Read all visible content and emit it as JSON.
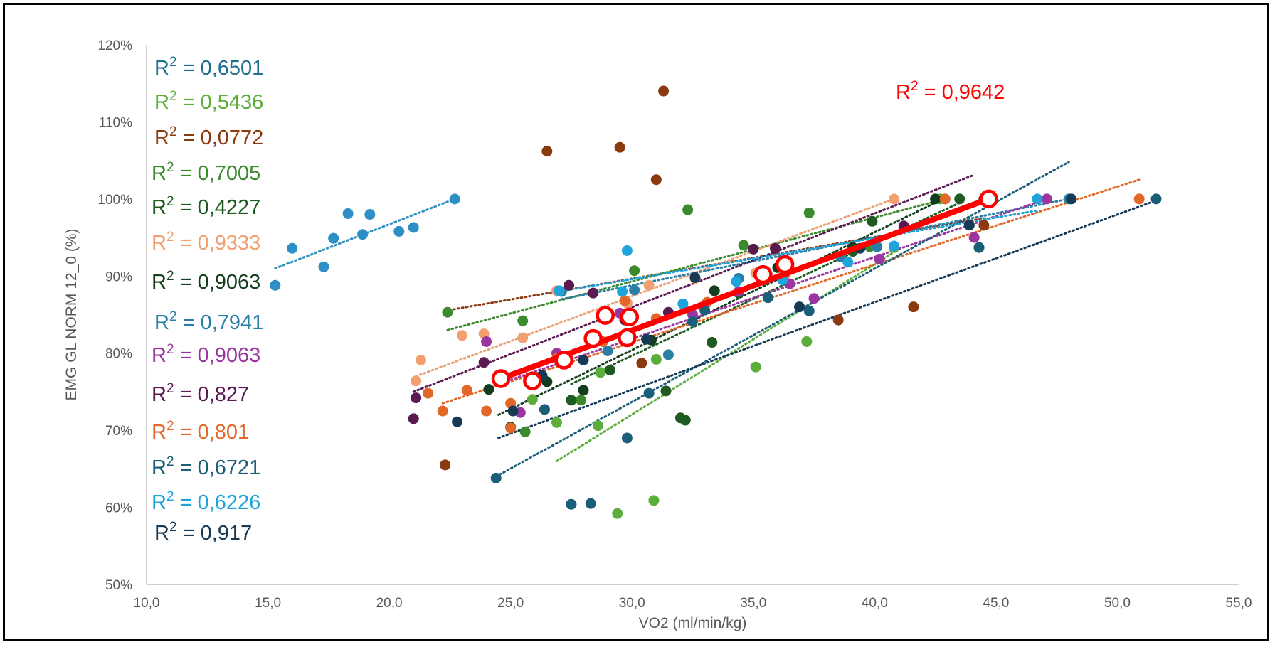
{
  "chart_data": {
    "type": "scatter",
    "title": "",
    "xlabel": "VO2 (ml/min/kg)",
    "ylabel": "EMG GL NORM 12_0 (%)",
    "xlim": [
      10,
      55
    ],
    "ylim": [
      50,
      120
    ],
    "x_ticks": [
      "10,0",
      "15,0",
      "20,0",
      "25,0",
      "30,0",
      "35,0",
      "40,0",
      "45,0",
      "50,0",
      "55,0"
    ],
    "y_ticks": [
      "50%",
      "60%",
      "70%",
      "80%",
      "90%",
      "100%",
      "110%",
      "120%"
    ],
    "grid": false,
    "legend": "none",
    "r2_labels": [
      {
        "text": "R² = 0,6501",
        "base": "R",
        "exp": "2",
        "rest": " = 0,6501",
        "color": "#1F6E8C"
      },
      {
        "text": "R² = 0,5436",
        "base": "R",
        "exp": "2",
        "rest": " = 0,5436",
        "color": "#5BAE3A"
      },
      {
        "text": "R² = 0,0772",
        "base": "R",
        "exp": "2",
        "rest": " = 0,0772",
        "color": "#8B3A10"
      },
      {
        "text": "R² = 0,7005",
        "base": "R",
        "exp": "2",
        "rest": " = 0,7005",
        "color": "#3C8A2E"
      },
      {
        "text": "R² = 0,4227",
        "base": "R",
        "exp": "2",
        "rest": " = 0,4227",
        "color": "#1E5A22"
      },
      {
        "text": "R² = 0,9333",
        "base": "R",
        "exp": "2",
        "rest": " = 0,9333",
        "color": "#F2A071"
      },
      {
        "text": "R² = 0,9063",
        "base": "R",
        "exp": "2",
        "rest": " = 0,9063",
        "color": "#123E1E"
      },
      {
        "text": "R² = 0,7941",
        "base": "R",
        "exp": "2",
        "rest": " = 0,7941",
        "color": "#2A7FA6"
      },
      {
        "text": "R² = 0,9063",
        "base": "R",
        "exp": "2",
        "rest": " = 0,9063",
        "color": "#9B36A0"
      },
      {
        "text": "R² = 0,827",
        "base": "R",
        "exp": "2",
        "rest": " = 0,827",
        "color": "#5A1A50"
      },
      {
        "text": "R² = 0,801",
        "base": "R",
        "exp": "2",
        "rest": " = 0,801",
        "color": "#E2682A"
      },
      {
        "text": "R² = 0,6721",
        "base": "R",
        "exp": "2",
        "rest": " = 0,6721",
        "color": "#1A5E78"
      },
      {
        "text": "R² = 0,6226",
        "base": "R",
        "exp": "2",
        "rest": " = 0,6226",
        "color": "#1FA3DB"
      },
      {
        "text": "R² = 0,917",
        "base": "R",
        "exp": "2",
        "rest": " = 0,917",
        "color": "#163A55"
      }
    ],
    "mean_r2_label": {
      "text": "R² = 0,9642",
      "base": "R",
      "exp": "2",
      "rest": " = 0,9642",
      "color": "#FF0000"
    },
    "series": [
      {
        "color": "#2E8FC4",
        "points": [
          [
            15.3,
            88.8
          ],
          [
            16.0,
            93.6
          ],
          [
            17.3,
            91.2
          ],
          [
            17.7,
            94.9
          ],
          [
            18.3,
            98.1
          ],
          [
            18.9,
            95.4
          ],
          [
            19.2,
            98.0
          ],
          [
            20.4,
            95.8
          ],
          [
            21.0,
            96.3
          ],
          [
            22.7,
            100.0
          ]
        ],
        "trend": [
          [
            15.3,
            91.0
          ],
          [
            22.7,
            100.0
          ]
        ]
      },
      {
        "color": "#5BAE3A",
        "points": [
          [
            25.9,
            74.0
          ],
          [
            26.9,
            71.0
          ],
          [
            28.6,
            70.6
          ],
          [
            28.7,
            77.5
          ],
          [
            29.4,
            59.2
          ],
          [
            30.9,
            60.9
          ],
          [
            31.0,
            79.2
          ],
          [
            35.1,
            78.2
          ],
          [
            37.2,
            81.5
          ],
          [
            40.8,
            93.7
          ],
          [
            42.7,
            100.0
          ]
        ],
        "trend": [
          [
            26.9,
            66.0
          ],
          [
            41.0,
            93.5
          ]
        ]
      },
      {
        "color": "#8B3A10",
        "points": [
          [
            22.3,
            65.5
          ],
          [
            26.5,
            106.2
          ],
          [
            29.5,
            106.7
          ],
          [
            30.4,
            78.7
          ],
          [
            31.0,
            102.5
          ],
          [
            31.3,
            114.0
          ],
          [
            38.5,
            84.3
          ],
          [
            41.6,
            86.0
          ],
          [
            44.5,
            96.6
          ]
        ],
        "trend": [
          [
            22.3,
            85.5
          ],
          [
            44.5,
            97.5
          ]
        ]
      },
      {
        "color": "#3C8A2E",
        "points": [
          [
            22.4,
            85.3
          ],
          [
            25.5,
            84.2
          ],
          [
            25.6,
            69.8
          ],
          [
            27.9,
            73.9
          ],
          [
            30.1,
            90.7
          ],
          [
            32.3,
            98.6
          ],
          [
            34.6,
            94.0
          ],
          [
            37.3,
            98.2
          ],
          [
            39.8,
            93.8
          ],
          [
            42.9,
            100.0
          ]
        ],
        "trend": [
          [
            22.4,
            83.0
          ],
          [
            42.9,
            100.0
          ]
        ]
      },
      {
        "color": "#1E5A22",
        "points": [
          [
            27.5,
            73.9
          ],
          [
            29.1,
            77.8
          ],
          [
            31.4,
            75.1
          ],
          [
            32.0,
            71.6
          ],
          [
            32.2,
            71.3
          ],
          [
            33.3,
            81.4
          ],
          [
            34.4,
            87.8
          ],
          [
            39.1,
            93.2
          ],
          [
            39.9,
            97.1
          ],
          [
            43.5,
            100.0
          ]
        ],
        "trend": [
          [
            27.5,
            76.0
          ],
          [
            43.5,
            99.5
          ]
        ]
      },
      {
        "color": "#F2A071",
        "points": [
          [
            21.1,
            76.4
          ],
          [
            21.3,
            79.1
          ],
          [
            23.0,
            82.3
          ],
          [
            23.9,
            82.5
          ],
          [
            25.5,
            82.0
          ],
          [
            26.9,
            88.1
          ],
          [
            29.8,
            86.5
          ],
          [
            30.7,
            88.8
          ],
          [
            32.6,
            89.7
          ],
          [
            35.1,
            90.4
          ],
          [
            40.8,
            100.0
          ]
        ],
        "trend": [
          [
            21.1,
            77.0
          ],
          [
            40.8,
            100.0
          ]
        ]
      },
      {
        "color": "#123E1E",
        "points": [
          [
            24.1,
            75.3
          ],
          [
            25.0,
            70.4
          ],
          [
            26.5,
            76.3
          ],
          [
            28.0,
            75.2
          ],
          [
            29.8,
            82.1
          ],
          [
            30.8,
            81.7
          ],
          [
            33.4,
            88.1
          ],
          [
            36.0,
            91.1
          ],
          [
            39.1,
            93.7
          ],
          [
            42.5,
            100.0
          ]
        ],
        "trend": [
          [
            24.5,
            72.0
          ],
          [
            42.5,
            99.5
          ]
        ]
      },
      {
        "color": "#2A7FA6",
        "points": [
          [
            27.1,
            88.0
          ],
          [
            29.0,
            80.3
          ],
          [
            30.1,
            88.2
          ],
          [
            31.5,
            79.8
          ],
          [
            34.4,
            89.7
          ],
          [
            35.5,
            90.3
          ],
          [
            38.6,
            92.5
          ],
          [
            40.1,
            93.8
          ],
          [
            44.3,
            93.7
          ],
          [
            48.0,
            100.0
          ]
        ],
        "trend": [
          [
            27.1,
            87.0
          ],
          [
            48.0,
            100.0
          ]
        ]
      },
      {
        "color": "#9B36A0",
        "points": [
          [
            24.0,
            81.5
          ],
          [
            25.4,
            72.3
          ],
          [
            26.9,
            80.0
          ],
          [
            29.5,
            85.2
          ],
          [
            32.5,
            85.0
          ],
          [
            34.4,
            88.0
          ],
          [
            36.5,
            89.0
          ],
          [
            37.5,
            87.1
          ],
          [
            40.2,
            92.2
          ],
          [
            44.1,
            95.0
          ],
          [
            47.1,
            100.0
          ]
        ],
        "trend": [
          [
            24.0,
            75.5
          ],
          [
            47.1,
            100.0
          ]
        ]
      },
      {
        "color": "#5A1A50",
        "points": [
          [
            21.0,
            71.5
          ],
          [
            21.1,
            74.2
          ],
          [
            23.9,
            78.8
          ],
          [
            27.4,
            88.8
          ],
          [
            28.4,
            87.8
          ],
          [
            29.7,
            84.3
          ],
          [
            31.5,
            85.3
          ],
          [
            35.0,
            93.5
          ],
          [
            35.9,
            93.6
          ],
          [
            41.2,
            96.5
          ],
          [
            44.5,
            100.0
          ]
        ],
        "trend": [
          [
            21.0,
            75.0
          ],
          [
            44.0,
            103.0
          ]
        ]
      },
      {
        "color": "#E2682A",
        "points": [
          [
            21.6,
            74.8
          ],
          [
            22.2,
            72.5
          ],
          [
            23.2,
            75.2
          ],
          [
            24.0,
            72.5
          ],
          [
            25.0,
            73.5
          ],
          [
            25.0,
            70.3
          ],
          [
            26.9,
            79.3
          ],
          [
            28.8,
            81.5
          ],
          [
            29.7,
            86.8
          ],
          [
            31.0,
            84.5
          ],
          [
            33.1,
            86.6
          ],
          [
            36.3,
            90.2
          ],
          [
            42.9,
            100.0
          ],
          [
            50.9,
            100.0
          ]
        ],
        "trend": [
          [
            22.2,
            73.5
          ],
          [
            50.9,
            102.5
          ]
        ]
      },
      {
        "color": "#1A5E78",
        "points": [
          [
            24.4,
            63.8
          ],
          [
            26.4,
            72.7
          ],
          [
            27.5,
            60.4
          ],
          [
            28.3,
            60.5
          ],
          [
            29.8,
            69.0
          ],
          [
            30.7,
            74.8
          ],
          [
            32.5,
            84.1
          ],
          [
            33.0,
            85.6
          ],
          [
            35.6,
            87.2
          ],
          [
            37.3,
            85.5
          ],
          [
            44.3,
            93.7
          ],
          [
            51.6,
            100.0
          ]
        ],
        "trend": [
          [
            24.4,
            64.0
          ],
          [
            48.0,
            104.8
          ]
        ]
      },
      {
        "color": "#1FA3DB",
        "points": [
          [
            27.0,
            88.1
          ],
          [
            29.6,
            88.0
          ],
          [
            29.8,
            93.3
          ],
          [
            32.1,
            86.4
          ],
          [
            34.3,
            89.3
          ],
          [
            36.2,
            89.5
          ],
          [
            38.9,
            91.8
          ],
          [
            40.8,
            93.9
          ],
          [
            46.7,
            100.0
          ]
        ],
        "trend": [
          [
            27.0,
            88.0
          ],
          [
            46.7,
            98.5
          ]
        ]
      },
      {
        "color": "#163A55",
        "points": [
          [
            22.8,
            71.1
          ],
          [
            25.1,
            72.5
          ],
          [
            26.3,
            77.1
          ],
          [
            28.0,
            79.1
          ],
          [
            30.6,
            81.8
          ],
          [
            32.6,
            89.8
          ],
          [
            35.2,
            90.2
          ],
          [
            36.9,
            86.0
          ],
          [
            39.4,
            93.6
          ],
          [
            43.9,
            96.6
          ],
          [
            48.1,
            100.0
          ]
        ],
        "trend": [
          [
            24.5,
            69.0
          ],
          [
            51.6,
            99.8
          ]
        ]
      }
    ],
    "mean_series": {
      "color": "#FF0000",
      "points": [
        [
          24.6,
          76.7
        ],
        [
          25.9,
          76.4
        ],
        [
          27.2,
          79.1
        ],
        [
          28.4,
          81.9
        ],
        [
          28.9,
          84.9
        ],
        [
          29.8,
          82.0
        ],
        [
          29.9,
          84.7
        ],
        [
          35.4,
          90.2
        ],
        [
          36.3,
          91.5
        ],
        [
          44.7,
          100.0
        ]
      ],
      "trend": [
        [
          24.6,
          76.7
        ],
        [
          44.7,
          100.0
        ]
      ]
    }
  }
}
